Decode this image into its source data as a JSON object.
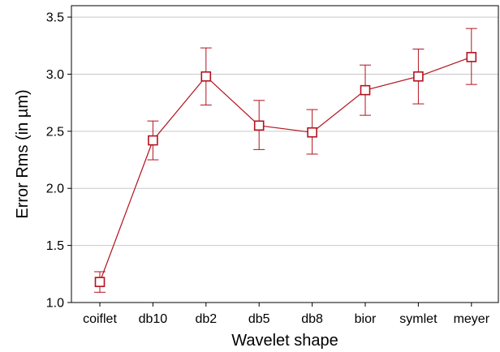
{
  "chart_data": {
    "type": "line",
    "title": "",
    "xlabel": "Wavelet shape",
    "ylabel": "Error Rms (in µm)",
    "categories": [
      "coiflet",
      "db10",
      "db2",
      "db5",
      "db8",
      "bior",
      "symlet",
      "meyer"
    ],
    "values": [
      1.18,
      2.42,
      2.98,
      2.55,
      2.49,
      2.86,
      2.98,
      3.15
    ],
    "error_upper": [
      1.27,
      2.59,
      3.23,
      2.77,
      2.69,
      3.08,
      3.22,
      3.4
    ],
    "error_lower": [
      1.09,
      2.25,
      2.73,
      2.34,
      2.3,
      2.64,
      2.74,
      2.91
    ],
    "ylim": [
      1.0,
      3.6
    ],
    "yticks": [
      "1.0",
      "1.5",
      "2.0",
      "2.5",
      "3.0",
      "3.5"
    ],
    "grid": true,
    "marker": "square-open",
    "colors": {
      "series": "#b3121f",
      "grid": "#c8c8c8",
      "axis": "#000000"
    }
  }
}
